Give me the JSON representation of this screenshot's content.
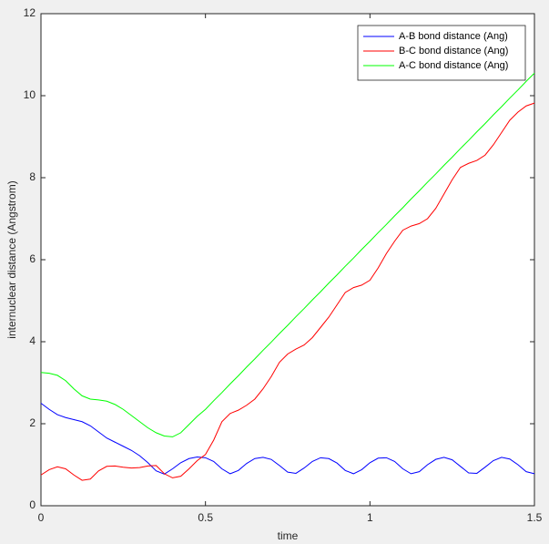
{
  "chart_data": {
    "type": "line",
    "xlabel": "time",
    "ylabel": "internuclear distance (Angstrom)",
    "x": [
      0,
      0.025,
      0.05,
      0.075,
      0.1,
      0.125,
      0.15,
      0.175,
      0.2,
      0.225,
      0.25,
      0.275,
      0.3,
      0.325,
      0.35,
      0.375,
      0.4,
      0.425,
      0.45,
      0.475,
      0.5,
      0.525,
      0.55,
      0.575,
      0.6,
      0.625,
      0.65,
      0.675,
      0.7,
      0.725,
      0.75,
      0.775,
      0.8,
      0.825,
      0.85,
      0.875,
      0.9,
      0.925,
      0.95,
      0.975,
      1.0,
      1.025,
      1.05,
      1.075,
      1.1,
      1.125,
      1.15,
      1.175,
      1.2,
      1.225,
      1.25,
      1.275,
      1.3,
      1.325,
      1.35,
      1.375,
      1.4,
      1.425,
      1.45,
      1.475,
      1.5
    ],
    "series": [
      {
        "name": "A-B bond distance (Ang)",
        "color": "#0000ff",
        "values": [
          2.5,
          2.35,
          2.22,
          2.15,
          2.1,
          2.05,
          1.95,
          1.8,
          1.65,
          1.55,
          1.45,
          1.35,
          1.22,
          1.05,
          0.85,
          0.77,
          0.9,
          1.05,
          1.15,
          1.19,
          1.17,
          1.08,
          0.9,
          0.78,
          0.86,
          1.03,
          1.15,
          1.18,
          1.13,
          0.98,
          0.82,
          0.79,
          0.92,
          1.08,
          1.17,
          1.15,
          1.04,
          0.86,
          0.78,
          0.88,
          1.05,
          1.16,
          1.17,
          1.08,
          0.9,
          0.78,
          0.83,
          1.0,
          1.13,
          1.18,
          1.12,
          0.96,
          0.8,
          0.79,
          0.94,
          1.1,
          1.18,
          1.14,
          1.0,
          0.83,
          0.78
        ]
      },
      {
        "name": "B-C bond distance (Ang)",
        "color": "#ff0000",
        "values": [
          0.75,
          0.88,
          0.95,
          0.9,
          0.75,
          0.62,
          0.65,
          0.85,
          0.96,
          0.97,
          0.94,
          0.92,
          0.93,
          0.97,
          0.98,
          0.78,
          0.68,
          0.72,
          0.9,
          1.1,
          1.25,
          1.6,
          2.05,
          2.25,
          2.33,
          2.45,
          2.6,
          2.85,
          3.15,
          3.5,
          3.7,
          3.82,
          3.92,
          4.1,
          4.35,
          4.6,
          4.9,
          5.2,
          5.32,
          5.38,
          5.5,
          5.8,
          6.15,
          6.45,
          6.72,
          6.82,
          6.88,
          7.0,
          7.25,
          7.6,
          7.95,
          8.25,
          8.35,
          8.42,
          8.55,
          8.8,
          9.1,
          9.4,
          9.6,
          9.75,
          9.82
        ]
      },
      {
        "name": "A-C bond distance (Ang)",
        "color": "#00ff00",
        "values": [
          3.25,
          3.23,
          3.18,
          3.05,
          2.85,
          2.68,
          2.6,
          2.58,
          2.55,
          2.47,
          2.35,
          2.2,
          2.05,
          1.9,
          1.78,
          1.7,
          1.68,
          1.78,
          1.98,
          2.18,
          2.35,
          2.56,
          2.76,
          2.97,
          3.17,
          3.38,
          3.58,
          3.79,
          3.99,
          4.2,
          4.4,
          4.61,
          4.81,
          5.02,
          5.22,
          5.43,
          5.63,
          5.84,
          6.04,
          6.25,
          6.45,
          6.66,
          6.86,
          7.07,
          7.27,
          7.48,
          7.68,
          7.89,
          8.09,
          8.3,
          8.5,
          8.71,
          8.91,
          9.12,
          9.32,
          9.53,
          9.73,
          9.94,
          10.14,
          10.35,
          10.55
        ]
      }
    ],
    "xlim": [
      0,
      1.5
    ],
    "xticks": [
      0,
      0.5,
      1,
      1.5
    ],
    "ylim": [
      0,
      12
    ],
    "yticks": [
      0,
      2,
      4,
      6,
      8,
      10,
      12
    ],
    "grid": false,
    "legend": "top-right"
  }
}
